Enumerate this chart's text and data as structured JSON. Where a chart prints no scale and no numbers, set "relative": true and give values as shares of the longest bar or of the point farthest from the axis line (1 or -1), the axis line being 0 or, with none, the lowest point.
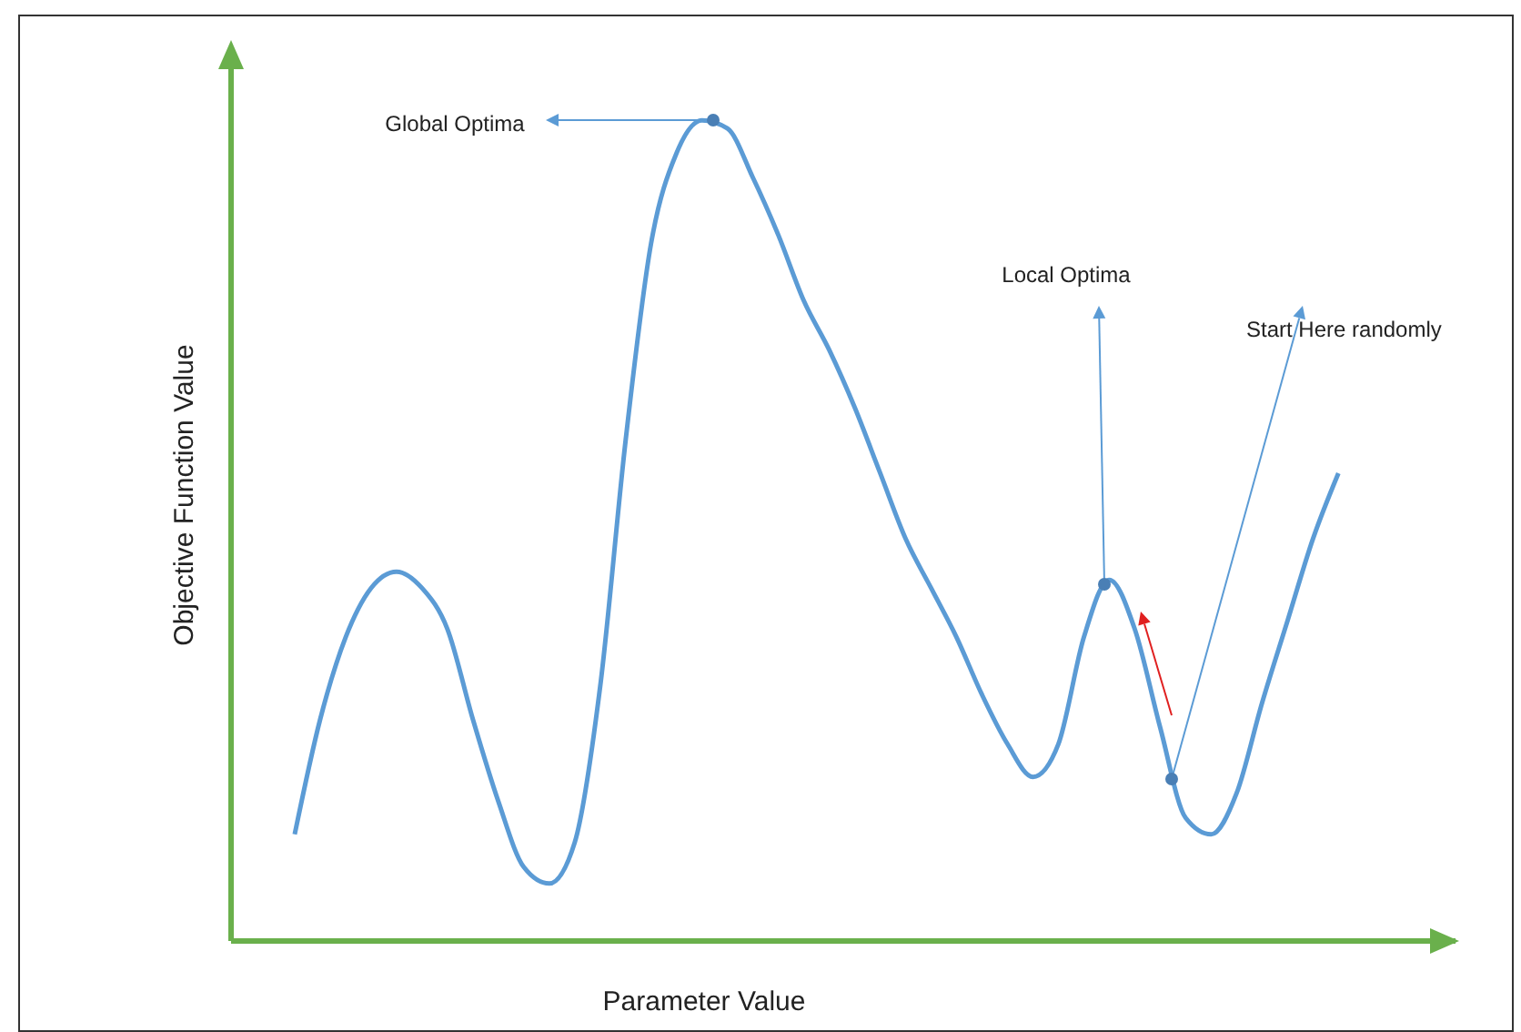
{
  "chart_data": {
    "type": "line",
    "relative": true,
    "xlabel": "Parameter Value",
    "ylabel": "Objective Function Value",
    "categories": [
      null,
      null,
      null,
      null,
      null,
      null,
      null,
      null,
      null,
      null,
      null,
      null,
      null,
      null,
      null,
      null,
      null,
      null,
      null,
      null,
      null,
      null,
      null,
      null,
      null,
      null,
      null,
      null,
      null,
      null,
      null,
      null,
      null,
      null,
      null,
      null,
      null,
      null,
      null,
      null,
      null,
      null
    ],
    "series": [
      {
        "color": "#5b9bd5",
        "values": [
          0.13,
          0.27,
          0.37,
          0.43,
          0.45,
          0.43,
          0.38,
          0.27,
          0.17,
          0.09,
          0.07,
          0.12,
          0.31,
          0.61,
          0.85,
          0.96,
          1.0,
          0.99,
          0.93,
          0.86,
          0.78,
          0.72,
          0.65,
          0.57,
          0.49,
          0.43,
          0.37,
          0.3,
          0.24,
          0.2,
          0.24,
          0.37,
          0.44,
          0.38,
          0.26,
          0.15,
          0.13,
          0.18,
          0.29,
          0.39,
          0.49,
          0.57
        ]
      }
    ],
    "annotations": [
      "Global Optima",
      "Local Optima",
      "Start Here randomly"
    ],
    "tick_labels": false,
    "grid": false,
    "legend": false,
    "marker": "none",
    "line_style": "solid"
  }
}
